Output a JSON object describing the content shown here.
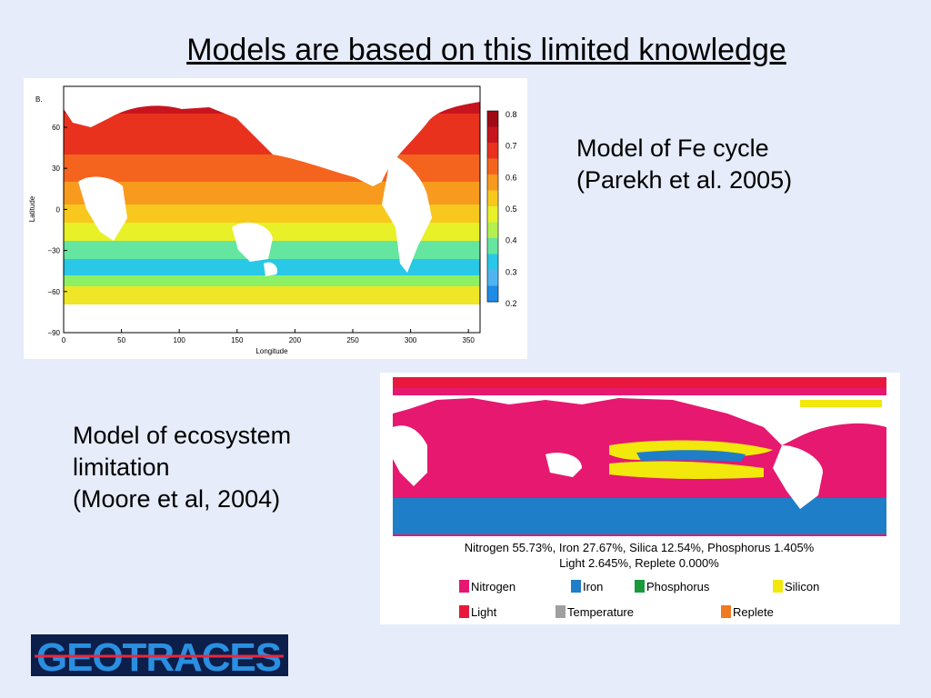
{
  "title": "Models are based on this limited knowledge",
  "fe_model": {
    "label_lines": [
      "Model of Fe cycle",
      "(Parekh et al. 2005)"
    ],
    "figure": {
      "panel_label": "B.",
      "y_axis_title": "Latitude",
      "x_axis_title": "Longitude",
      "y_ticks": [
        "60",
        "30",
        "0",
        "−30",
        "−60",
        "−90"
      ],
      "x_ticks": [
        "0",
        "50",
        "100",
        "150",
        "200",
        "250",
        "300",
        "350"
      ],
      "colorbar_ticks": [
        "0.8",
        "0.7",
        "0.6",
        "0.5",
        "0.4",
        "0.3",
        "0.2"
      ]
    }
  },
  "ecosystem_model": {
    "label_lines": [
      "Model of ecosystem",
      "limitation",
      "(Moore et al, 2004)"
    ],
    "figure": {
      "summary_lines": [
        "Nitrogen 55.73%, Iron 27.67%, Silica 12.54%, Phosphorus 1.405%",
        "Light 2.645%, Replete 0.000%"
      ],
      "legend": [
        "Nitrogen",
        "Iron",
        "Phosphorus",
        "Silicon",
        "Light",
        "Temperature",
        "Replete"
      ]
    }
  },
  "logo": "GEOTRACES"
}
